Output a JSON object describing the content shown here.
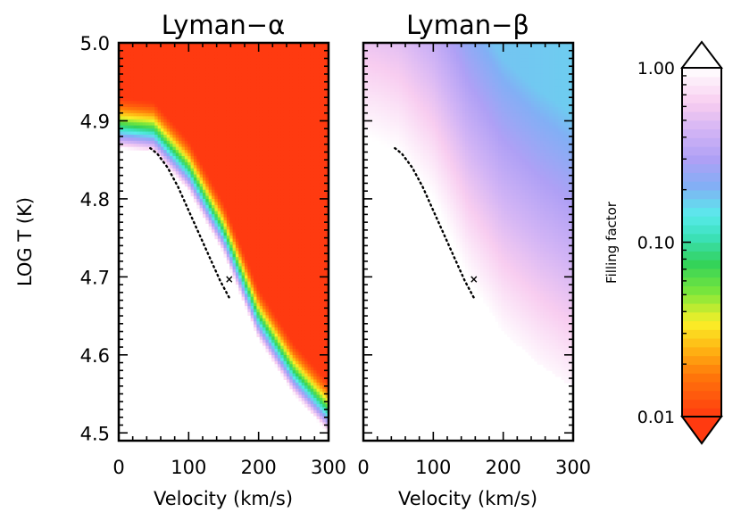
{
  "chart_data": [
    {
      "type": "heatmap",
      "title": "Lyman−α",
      "xlabel": "Velocity (km/s)",
      "ylabel": "LOG T (K)",
      "xlim": [
        0,
        300
      ],
      "ylim": [
        4.49,
        5.0
      ],
      "x_ticks": [
        "0",
        "100",
        "200",
        "300"
      ],
      "y_ticks": [
        "4.5",
        "4.6",
        "4.7",
        "4.8",
        "4.9",
        "5.0"
      ],
      "boundary_curve": {
        "x": [
          0,
          50,
          100,
          150,
          200,
          250,
          300
        ],
        "y": [
          4.865,
          4.86,
          4.81,
          4.73,
          4.62,
          4.55,
          4.5
        ]
      },
      "band_width_logT": 0.065,
      "dotted_curve": {
        "x": [
          45,
          55,
          70,
          85,
          100,
          115,
          130,
          145,
          160
        ],
        "y": [
          4.865,
          4.858,
          4.84,
          4.815,
          4.785,
          4.755,
          4.725,
          4.695,
          4.67
        ]
      },
      "marker": {
        "x": 158,
        "y": 4.697
      }
    },
    {
      "type": "heatmap",
      "title": "Lyman−β",
      "xlabel": "Velocity (km/s)",
      "xlim": [
        0,
        300
      ],
      "ylim": [
        4.49,
        5.0
      ],
      "x_ticks": [
        "0",
        "100",
        "200",
        "300"
      ],
      "boundary_curve": {
        "x": [
          0,
          50,
          100,
          150,
          200,
          250,
          300
        ],
        "y": [
          4.88,
          4.86,
          4.8,
          4.7,
          4.63,
          4.59,
          4.56
        ]
      },
      "band_width_logT": 0.35,
      "dotted_curve": {
        "x": [
          45,
          55,
          70,
          85,
          100,
          115,
          130,
          145,
          160
        ],
        "y": [
          4.865,
          4.858,
          4.84,
          4.815,
          4.785,
          4.755,
          4.725,
          4.695,
          4.67
        ]
      },
      "marker": {
        "x": 158,
        "y": 4.697
      }
    }
  ],
  "colorbar": {
    "label": "Filling factor",
    "scale": "log",
    "range": [
      0.01,
      1.0
    ],
    "ticks": [
      {
        "value": 1.0,
        "label": "1.00"
      },
      {
        "value": 0.1,
        "label": "0.10"
      },
      {
        "value": 0.01,
        "label": "0.01"
      }
    ],
    "over_color": "#ffffff",
    "under_color": "#ff3a10"
  }
}
